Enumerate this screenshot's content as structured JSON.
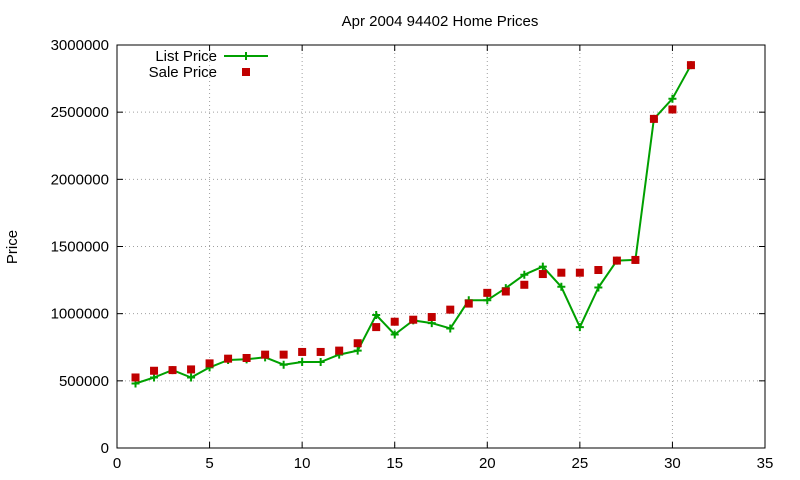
{
  "chart_data": {
    "type": "line",
    "title": "Apr 2004 94402 Home Prices",
    "xlabel": "",
    "ylabel": "Price",
    "xlim": [
      0,
      35
    ],
    "ylim": [
      0,
      3000000
    ],
    "xticks": [
      0,
      5,
      10,
      15,
      20,
      25,
      30,
      35
    ],
    "yticks": [
      0,
      500000,
      1000000,
      1500000,
      2000000,
      2500000,
      3000000
    ],
    "grid": true,
    "legend_position": "top-left",
    "series": [
      {
        "name": "List Price",
        "style": "line-with-plus-markers",
        "color": "#00a000",
        "x": [
          1,
          2,
          3,
          4,
          5,
          6,
          7,
          8,
          9,
          10,
          11,
          12,
          13,
          14,
          15,
          16,
          17,
          18,
          19,
          20,
          21,
          22,
          23,
          24,
          25,
          26,
          27,
          28,
          29,
          30,
          31
        ],
        "y": [
          480000,
          525000,
          580000,
          525000,
          600000,
          655000,
          660000,
          675000,
          620000,
          640000,
          640000,
          695000,
          725000,
          990000,
          845000,
          950000,
          930000,
          890000,
          1100000,
          1100000,
          1190000,
          1290000,
          1350000,
          1200000,
          900000,
          1195000,
          1395000,
          1400000,
          2450000,
          2600000,
          2850000
        ]
      },
      {
        "name": "Sale Price",
        "style": "square-markers",
        "color": "#c00000",
        "x": [
          1,
          2,
          3,
          4,
          5,
          6,
          7,
          8,
          9,
          10,
          11,
          12,
          13,
          14,
          15,
          16,
          17,
          18,
          19,
          20,
          21,
          22,
          23,
          24,
          25,
          26,
          27,
          28,
          29,
          30,
          31
        ],
        "y": [
          525000,
          575000,
          580000,
          585000,
          630000,
          665000,
          670000,
          695000,
          695000,
          715000,
          715000,
          725000,
          780000,
          900000,
          940000,
          955000,
          975000,
          1030000,
          1075000,
          1155000,
          1165000,
          1215000,
          1295000,
          1305000,
          1305000,
          1325000,
          1395000,
          1400000,
          2450000,
          2520000,
          2850000
        ]
      }
    ]
  }
}
